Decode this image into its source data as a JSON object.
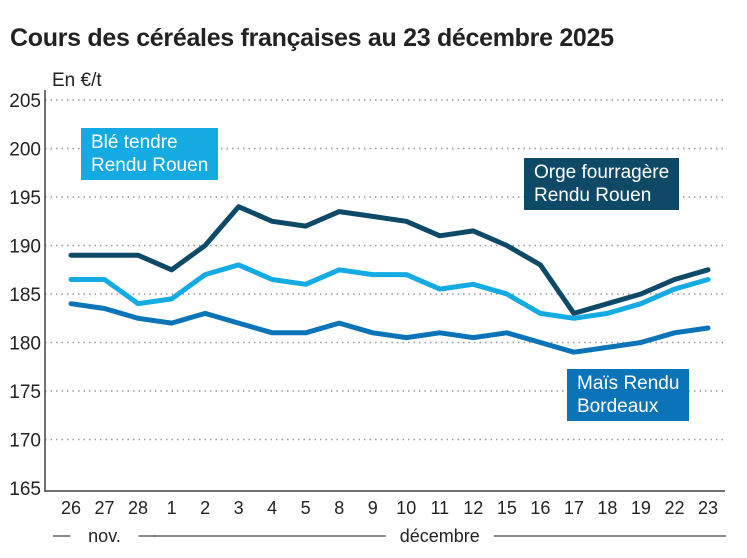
{
  "chart_data": {
    "type": "line",
    "title": "Cours des céréales françaises au 23 décembre 2025",
    "ylabel": "En €/t",
    "ylim": [
      165,
      205
    ],
    "yticks": [
      165,
      170,
      175,
      180,
      185,
      190,
      195,
      200,
      205
    ],
    "grid": true,
    "categories": [
      "26",
      "27",
      "28",
      "1",
      "2",
      "3",
      "4",
      "5",
      "8",
      "9",
      "10",
      "11",
      "12",
      "15",
      "16",
      "17",
      "18",
      "19",
      "22",
      "23"
    ],
    "month_groups": [
      {
        "label": "nov.",
        "from": 0,
        "to": 2
      },
      {
        "label": "décembre",
        "from": 3,
        "to": 19
      }
    ],
    "series": [
      {
        "name": "Orge fourragère Rendu Rouen",
        "color": "#0e4a68",
        "values": [
          189,
          189,
          189,
          187.5,
          190,
          194,
          192.5,
          192,
          193.5,
          193,
          192.5,
          191,
          191.5,
          190,
          188,
          183,
          184,
          185,
          186.5,
          187.5
        ]
      },
      {
        "name": "Blé tendre Rendu Rouen",
        "color": "#14aae2",
        "values": [
          186.5,
          186.5,
          184,
          184.5,
          187,
          188,
          186.5,
          186,
          187.5,
          187,
          187,
          185.5,
          186,
          185,
          183,
          182.5,
          183,
          184,
          185.5,
          186.5
        ]
      },
      {
        "name": "Maïs Rendu Bordeaux",
        "color": "#0b74b8",
        "values": [
          184,
          183.5,
          182.5,
          182,
          183,
          182,
          181,
          181,
          182,
          181,
          180.5,
          181,
          180.5,
          181,
          180,
          179,
          179.5,
          180,
          181,
          181.5
        ]
      }
    ],
    "labels": {
      "ble": [
        "Blé tendre",
        "Rendu Rouen"
      ],
      "orge": [
        "Orge fourragère",
        "Rendu Rouen"
      ],
      "mais": [
        "Maïs Rendu",
        "Bordeaux"
      ]
    }
  }
}
